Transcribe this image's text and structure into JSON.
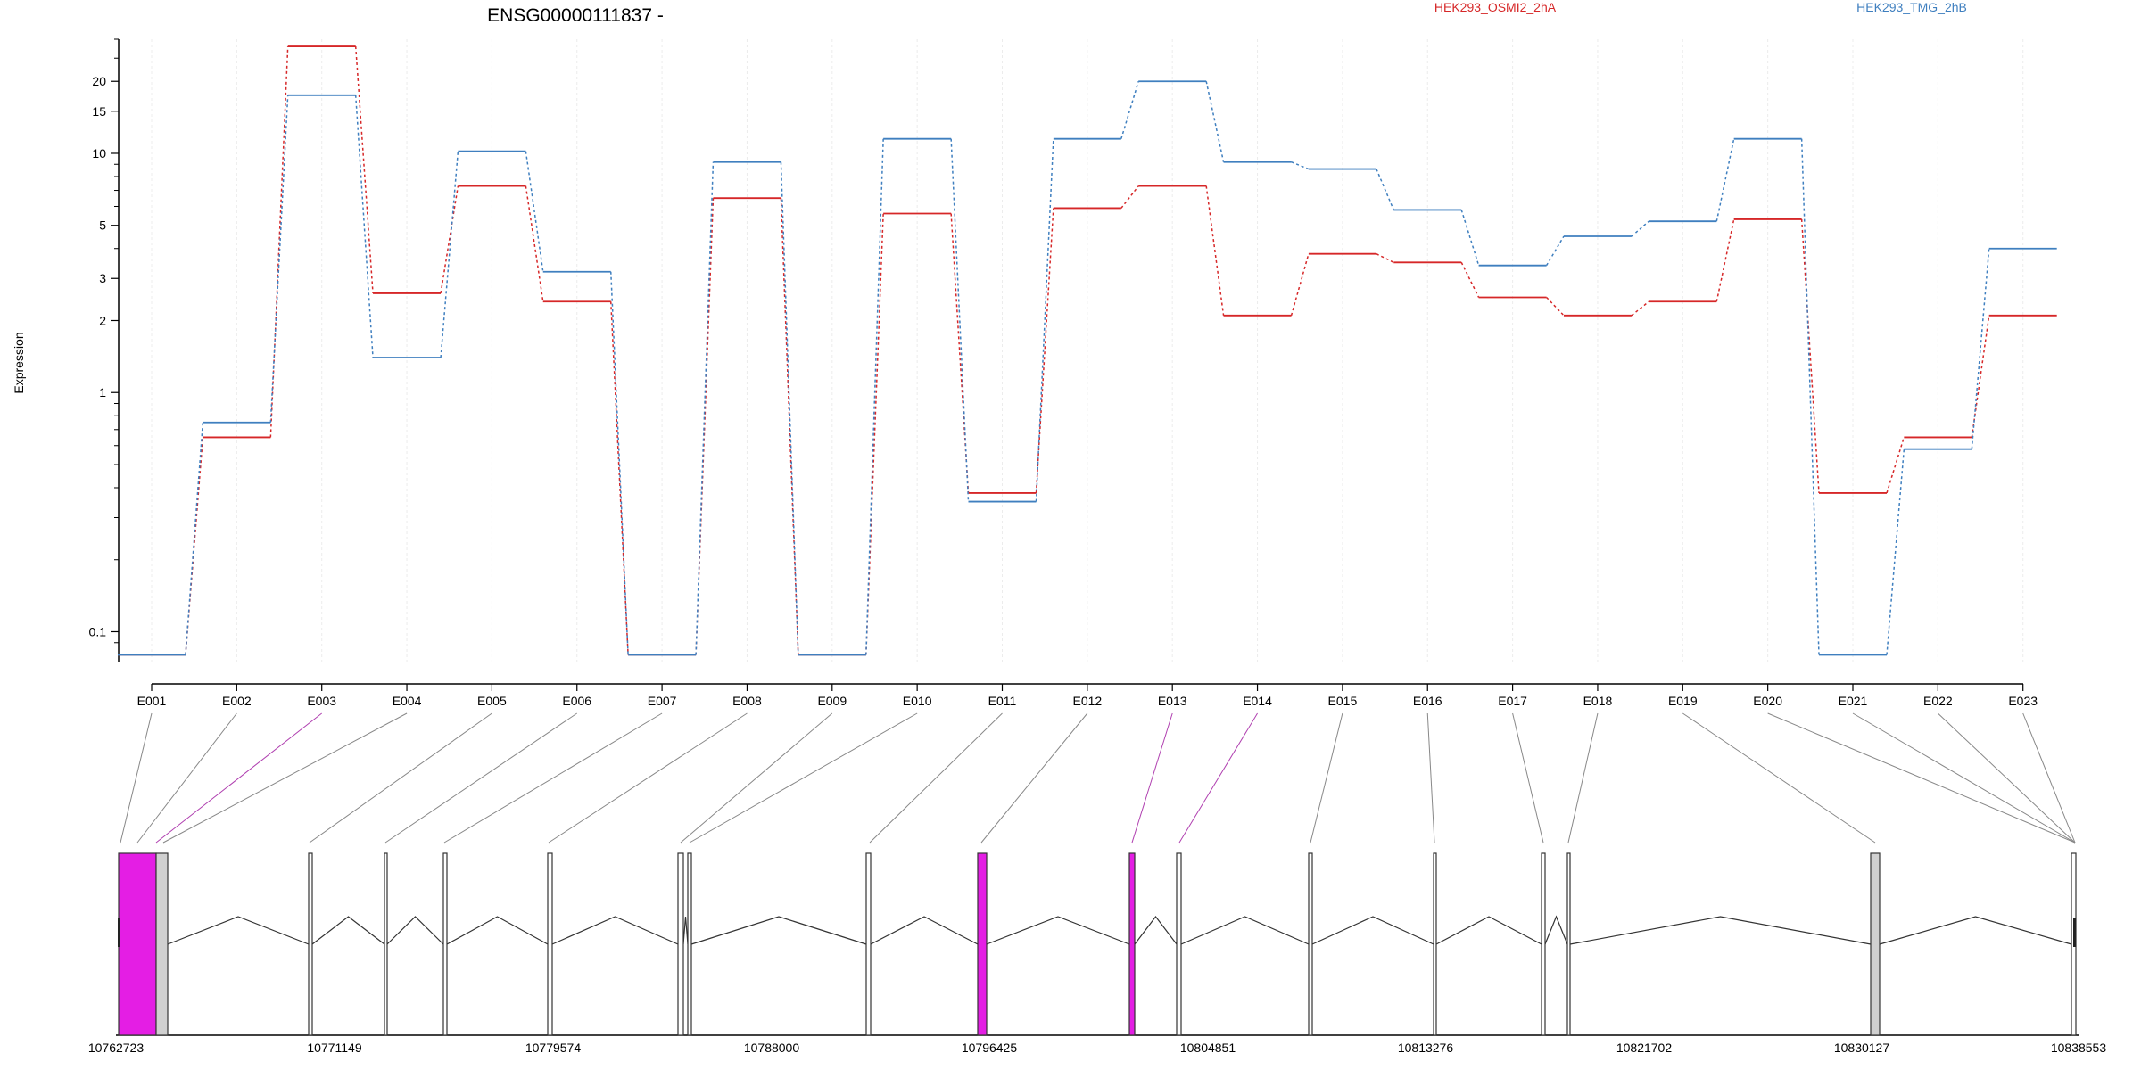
{
  "chart_data": {
    "type": "line",
    "title": "ENSG00000111837 -",
    "ylabel": "Expression",
    "xlabel": "",
    "y_scale": "log",
    "ylim": [
      0.075,
      30
    ],
    "y_ticks": [
      0.1,
      1,
      2,
      3,
      5,
      10,
      15,
      20
    ],
    "y_tick_labels": [
      "0.1",
      "1",
      "2",
      "3",
      "5",
      "10",
      "15",
      "20"
    ],
    "categories": [
      "E001",
      "E002",
      "E003",
      "E004",
      "E005",
      "E006",
      "E007",
      "E008",
      "E009",
      "E010",
      "E011",
      "E012",
      "E013",
      "E014",
      "E015",
      "E016",
      "E017",
      "E018",
      "E019",
      "E020",
      "E021",
      "E022",
      "E023"
    ],
    "grid": "vertical",
    "legend_position": "top",
    "series": [
      {
        "name": "HEK293_OSMI2_2hA",
        "color": "#d62728",
        "values": [
          0.08,
          0.65,
          28,
          2.6,
          7.3,
          2.4,
          0.08,
          6.5,
          0.08,
          5.6,
          0.38,
          5.9,
          7.3,
          2.1,
          3.8,
          3.5,
          2.5,
          2.1,
          2.4,
          5.3,
          0.38,
          0.65,
          2.1
        ]
      },
      {
        "name": "HEK293_TMG_2hB",
        "color": "#3f7fbf",
        "values": [
          0.08,
          0.75,
          17.5,
          1.4,
          10.2,
          3.2,
          0.08,
          9.2,
          0.08,
          11.5,
          0.35,
          11.5,
          20,
          9.2,
          8.6,
          5.8,
          3.4,
          4.5,
          5.2,
          11.5,
          0.08,
          0.58,
          4.0
        ]
      }
    ]
  },
  "gene_model": {
    "coord_labels": [
      "10762723",
      "10771149",
      "10779574",
      "10788000",
      "10796425",
      "10804851",
      "10813276",
      "10821702",
      "10830127",
      "10838553"
    ],
    "colors": {
      "highlight": "#e41ee4",
      "exon": "#ffffff",
      "shaded_exon": "#d0d0d0",
      "connector": "#888888",
      "highlight_connector": "#b040b0"
    }
  }
}
